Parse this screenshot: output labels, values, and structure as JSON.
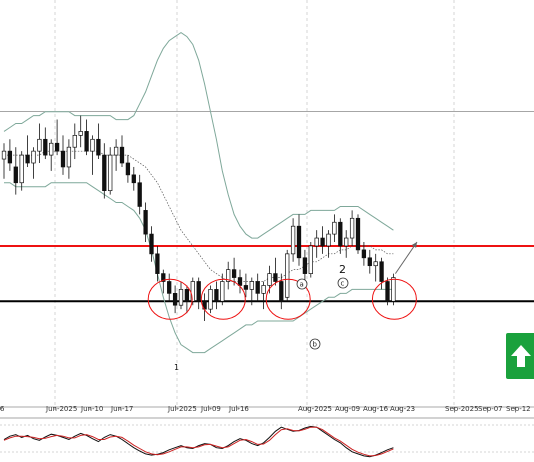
{
  "chart_data": {
    "type": "candlestick",
    "subtype": "price chart with Bollinger bands, horizontal levels and stochastic oscillator",
    "x_tick_labels": [
      "6",
      "Jun-2025",
      "Jun-10",
      "Jun-17",
      "Jul-2025",
      "Jul-09",
      "Jul-16",
      "Aug-2025",
      "Aug-09",
      "Aug-16",
      "Aug-23",
      "Sep-2025",
      "Sep-07",
      "Sep-12"
    ],
    "wave_labels": {
      "wave_two": "2",
      "wave_one": "1",
      "point_a": "a",
      "point_b": "b",
      "point_c": "c"
    },
    "price_scale": {
      "ymin": 0,
      "ymax": 100,
      "note": "price axis not visible; values are relative"
    },
    "candles": [
      {
        "o": 61,
        "h": 65,
        "l": 56,
        "c": 63
      },
      {
        "o": 63,
        "h": 66,
        "l": 58,
        "c": 60
      },
      {
        "o": 59,
        "h": 64,
        "l": 52,
        "c": 55
      },
      {
        "o": 55,
        "h": 63,
        "l": 53,
        "c": 62
      },
      {
        "o": 62,
        "h": 67,
        "l": 59,
        "c": 60
      },
      {
        "o": 60,
        "h": 64,
        "l": 56,
        "c": 63
      },
      {
        "o": 63,
        "h": 70,
        "l": 60,
        "c": 66
      },
      {
        "o": 66,
        "h": 69,
        "l": 61,
        "c": 62
      },
      {
        "o": 62,
        "h": 66,
        "l": 58,
        "c": 65
      },
      {
        "o": 65,
        "h": 71,
        "l": 62,
        "c": 63
      },
      {
        "o": 63,
        "h": 67,
        "l": 57,
        "c": 59
      },
      {
        "o": 59,
        "h": 66,
        "l": 56,
        "c": 64
      },
      {
        "o": 64,
        "h": 70,
        "l": 61,
        "c": 67
      },
      {
        "o": 67,
        "h": 72,
        "l": 64,
        "c": 68
      },
      {
        "o": 68,
        "h": 71,
        "l": 62,
        "c": 63
      },
      {
        "o": 63,
        "h": 67,
        "l": 57,
        "c": 66
      },
      {
        "o": 66,
        "h": 70,
        "l": 61,
        "c": 62
      },
      {
        "o": 62,
        "h": 65,
        "l": 51,
        "c": 53
      },
      {
        "o": 53,
        "h": 64,
        "l": 52,
        "c": 62
      },
      {
        "o": 62,
        "h": 66,
        "l": 58,
        "c": 64
      },
      {
        "o": 64,
        "h": 67,
        "l": 59,
        "c": 60
      },
      {
        "o": 60,
        "h": 62,
        "l": 55,
        "c": 57
      },
      {
        "o": 57,
        "h": 59,
        "l": 53,
        "c": 55
      },
      {
        "o": 55,
        "h": 57,
        "l": 47,
        "c": 49
      },
      {
        "o": 48,
        "h": 50,
        "l": 40,
        "c": 42
      },
      {
        "o": 42,
        "h": 44,
        "l": 35,
        "c": 37
      },
      {
        "o": 37,
        "h": 39,
        "l": 30,
        "c": 32
      },
      {
        "o": 32,
        "h": 33,
        "l": 27,
        "c": 30
      },
      {
        "o": 30,
        "h": 32,
        "l": 25,
        "c": 27
      },
      {
        "o": 27,
        "h": 29,
        "l": 22,
        "c": 24
      },
      {
        "o": 24,
        "h": 30,
        "l": 23,
        "c": 28
      },
      {
        "o": 28,
        "h": 29,
        "l": 22,
        "c": 25
      },
      {
        "o": 25,
        "h": 31,
        "l": 24,
        "c": 30
      },
      {
        "o": 30,
        "h": 31,
        "l": 23,
        "c": 25
      },
      {
        "o": 25,
        "h": 27,
        "l": 20,
        "c": 23
      },
      {
        "o": 23,
        "h": 29,
        "l": 22,
        "c": 28
      },
      {
        "o": 28,
        "h": 30,
        "l": 23,
        "c": 25
      },
      {
        "o": 25,
        "h": 32,
        "l": 24,
        "c": 30
      },
      {
        "o": 30,
        "h": 35,
        "l": 28,
        "c": 33
      },
      {
        "o": 33,
        "h": 36,
        "l": 29,
        "c": 31
      },
      {
        "o": 31,
        "h": 33,
        "l": 27,
        "c": 29
      },
      {
        "o": 29,
        "h": 32,
        "l": 26,
        "c": 28
      },
      {
        "o": 28,
        "h": 31,
        "l": 24,
        "c": 30
      },
      {
        "o": 30,
        "h": 32,
        "l": 25,
        "c": 27
      },
      {
        "o": 27,
        "h": 30,
        "l": 23,
        "c": 29
      },
      {
        "o": 29,
        "h": 34,
        "l": 27,
        "c": 32
      },
      {
        "o": 32,
        "h": 36,
        "l": 29,
        "c": 30
      },
      {
        "o": 30,
        "h": 32,
        "l": 23,
        "c": 25
      },
      {
        "o": 26,
        "h": 38,
        "l": 25,
        "c": 37
      },
      {
        "o": 37,
        "h": 46,
        "l": 35,
        "c": 44
      },
      {
        "o": 44,
        "h": 47,
        "l": 34,
        "c": 36
      },
      {
        "o": 36,
        "h": 38,
        "l": 30,
        "c": 32
      },
      {
        "o": 32,
        "h": 40,
        "l": 31,
        "c": 39
      },
      {
        "o": 39,
        "h": 43,
        "l": 36,
        "c": 41
      },
      {
        "o": 41,
        "h": 44,
        "l": 37,
        "c": 39
      },
      {
        "o": 39,
        "h": 43,
        "l": 36,
        "c": 42
      },
      {
        "o": 42,
        "h": 47,
        "l": 40,
        "c": 45
      },
      {
        "o": 45,
        "h": 46,
        "l": 37,
        "c": 39
      },
      {
        "o": 39,
        "h": 43,
        "l": 36,
        "c": 41
      },
      {
        "o": 41,
        "h": 48,
        "l": 39,
        "c": 46
      },
      {
        "o": 46,
        "h": 47,
        "l": 37,
        "c": 38
      },
      {
        "o": 38,
        "h": 40,
        "l": 34,
        "c": 36
      },
      {
        "o": 36,
        "h": 38,
        "l": 32,
        "c": 34
      },
      {
        "o": 34,
        "h": 37,
        "l": 30,
        "c": 35
      },
      {
        "o": 35,
        "h": 36,
        "l": 28,
        "c": 30
      },
      {
        "o": 30,
        "h": 31,
        "l": 24,
        "c": 25
      },
      {
        "o": 25,
        "h": 32,
        "l": 24,
        "c": 31
      }
    ],
    "bollinger": {
      "upper": [
        68,
        69,
        70,
        70,
        71,
        72,
        72,
        73,
        73,
        73,
        73,
        73,
        72,
        72,
        72,
        72,
        72,
        72,
        72,
        71,
        71,
        71,
        72,
        75,
        78,
        82,
        86,
        89,
        91,
        92,
        93,
        92,
        90,
        86,
        80,
        73,
        66,
        58,
        52,
        47,
        44,
        42,
        41,
        41,
        42,
        43,
        44,
        45,
        46,
        47,
        47,
        47,
        48,
        48,
        48,
        48,
        48,
        49,
        49,
        49,
        49,
        48,
        47,
        46,
        45,
        44,
        43
      ],
      "middle": [
        62,
        62,
        62,
        62,
        62,
        62,
        62,
        63,
        63,
        63,
        63,
        63,
        63,
        63,
        63,
        63,
        63,
        62,
        62,
        62,
        62,
        62,
        61,
        60,
        59,
        57,
        55,
        52,
        49,
        46,
        43,
        41,
        39,
        37,
        35,
        33,
        32,
        31,
        30,
        30,
        30,
        30,
        30,
        30,
        30,
        31,
        31,
        31,
        32,
        33,
        33,
        34,
        35,
        35,
        36,
        37,
        37,
        38,
        38,
        39,
        39,
        39,
        39,
        38,
        38,
        37,
        37
      ],
      "lower": [
        55,
        55,
        54,
        54,
        54,
        54,
        54,
        54,
        55,
        55,
        55,
        55,
        55,
        55,
        55,
        54,
        53,
        52,
        51,
        50,
        50,
        49,
        48,
        46,
        43,
        38,
        32,
        26,
        21,
        17,
        14,
        13,
        12,
        12,
        12,
        13,
        14,
        15,
        16,
        17,
        18,
        19,
        19,
        20,
        20,
        20,
        20,
        20,
        20,
        20,
        21,
        22,
        23,
        24,
        25,
        26,
        26,
        27,
        27,
        28,
        28,
        28,
        28,
        28,
        28,
        28,
        28
      ]
    },
    "horizontal_levels": [
      {
        "name": "resistance",
        "value": 39,
        "color": "#ee1111"
      },
      {
        "name": "support",
        "value": 25,
        "color": "#000000"
      },
      {
        "name": "upper level",
        "value": 73,
        "color": "#888888"
      }
    ],
    "stochastic": {
      "range": [
        0,
        100
      ],
      "levels": [
        20,
        80
      ],
      "main": [
        50,
        58,
        62,
        55,
        60,
        52,
        48,
        56,
        63,
        60,
        55,
        50,
        58,
        65,
        60,
        52,
        45,
        55,
        62,
        58,
        50,
        40,
        30,
        22,
        15,
        12,
        14,
        18,
        25,
        30,
        35,
        30,
        28,
        35,
        40,
        38,
        30,
        28,
        35,
        45,
        52,
        48,
        40,
        35,
        42,
        55,
        70,
        80,
        75,
        70,
        72,
        78,
        82,
        80,
        70,
        60,
        50,
        42,
        30,
        20,
        15,
        10,
        8,
        12,
        18,
        25,
        30
      ],
      "signal": [
        48,
        54,
        58,
        58,
        57,
        55,
        52,
        53,
        57,
        60,
        58,
        54,
        54,
        60,
        62,
        57,
        50,
        50,
        56,
        58,
        55,
        46,
        36,
        28,
        20,
        15,
        13,
        15,
        20,
        26,
        32,
        32,
        30,
        32,
        37,
        38,
        34,
        30,
        32,
        40,
        48,
        50,
        45,
        38,
        39,
        48,
        62,
        74,
        76,
        72,
        71,
        75,
        80,
        80,
        74,
        64,
        54,
        46,
        36,
        26,
        19,
        14,
        10,
        11,
        15,
        21,
        27
      ],
      "colors": {
        "main": "#111111",
        "signal": "#cc2222"
      }
    },
    "annotation_arrow": {
      "from_candle": 66,
      "to_candle": 70,
      "to_value": 40
    },
    "signal": "buy",
    "colors": {
      "bull": "#ffffff",
      "bear": "#111111",
      "bands": "#7fa89a",
      "middle_band": "#555555",
      "buy_box": "#1aa13c",
      "ellipse": "#ee1111",
      "grid": "#bbbbbb"
    }
  }
}
